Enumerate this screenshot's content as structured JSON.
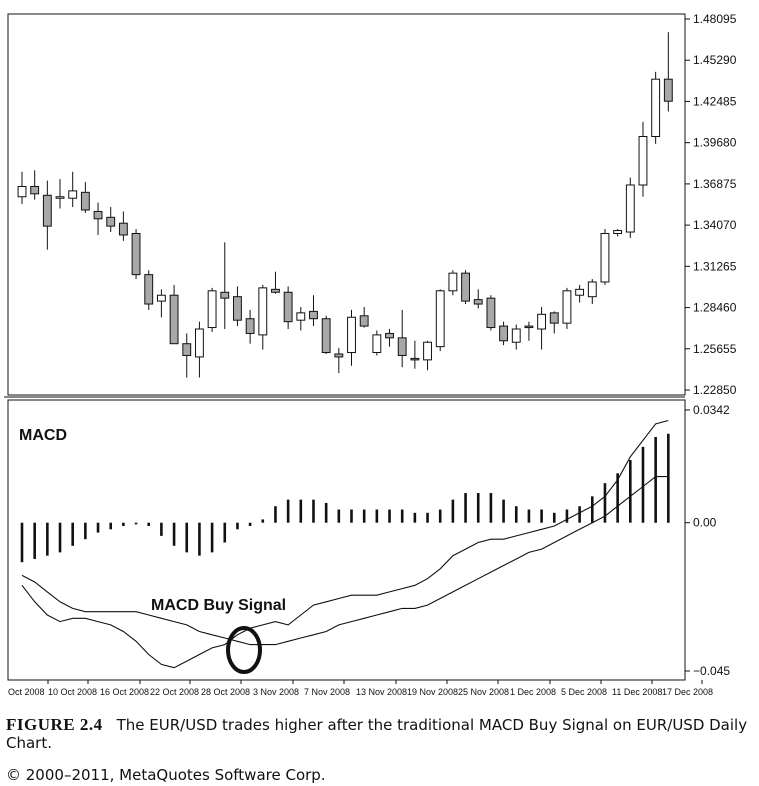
{
  "chart_data": [
    {
      "type": "candlestick",
      "name": "EUR/USD Daily",
      "price_axis_ticks": [
        "1.48095",
        "1.45290",
        "1.42485",
        "1.39680",
        "1.36875",
        "1.34070",
        "1.31265",
        "1.28460",
        "1.25655",
        "1.22850"
      ],
      "ylim": [
        1.2285,
        1.48095
      ],
      "grid": false,
      "candles": [
        {
          "o": 1.36,
          "h": 1.377,
          "l": 1.355,
          "c": 1.367
        },
        {
          "o": 1.367,
          "h": 1.378,
          "l": 1.358,
          "c": 1.362
        },
        {
          "o": 1.361,
          "h": 1.371,
          "l": 1.324,
          "c": 1.34
        },
        {
          "o": 1.36,
          "h": 1.372,
          "l": 1.352,
          "c": 1.36
        },
        {
          "o": 1.359,
          "h": 1.377,
          "l": 1.353,
          "c": 1.364
        },
        {
          "o": 1.363,
          "h": 1.37,
          "l": 1.349,
          "c": 1.351
        },
        {
          "o": 1.35,
          "h": 1.356,
          "l": 1.334,
          "c": 1.345
        },
        {
          "o": 1.346,
          "h": 1.353,
          "l": 1.336,
          "c": 1.34
        },
        {
          "o": 1.342,
          "h": 1.35,
          "l": 1.33,
          "c": 1.334
        },
        {
          "o": 1.335,
          "h": 1.338,
          "l": 1.304,
          "c": 1.307
        },
        {
          "o": 1.307,
          "h": 1.31,
          "l": 1.283,
          "c": 1.287
        },
        {
          "o": 1.289,
          "h": 1.297,
          "l": 1.278,
          "c": 1.293
        },
        {
          "o": 1.293,
          "h": 1.3,
          "l": 1.26,
          "c": 1.26
        },
        {
          "o": 1.26,
          "h": 1.267,
          "l": 1.237,
          "c": 1.252
        },
        {
          "o": 1.251,
          "h": 1.275,
          "l": 1.237,
          "c": 1.27
        },
        {
          "o": 1.271,
          "h": 1.298,
          "l": 1.268,
          "c": 1.296
        },
        {
          "o": 1.295,
          "h": 1.329,
          "l": 1.27,
          "c": 1.291
        },
        {
          "o": 1.292,
          "h": 1.299,
          "l": 1.272,
          "c": 1.276
        },
        {
          "o": 1.277,
          "h": 1.283,
          "l": 1.26,
          "c": 1.267
        },
        {
          "o": 1.266,
          "h": 1.3,
          "l": 1.256,
          "c": 1.298
        },
        {
          "o": 1.297,
          "h": 1.309,
          "l": 1.294,
          "c": 1.295
        },
        {
          "o": 1.295,
          "h": 1.299,
          "l": 1.27,
          "c": 1.275
        },
        {
          "o": 1.276,
          "h": 1.285,
          "l": 1.269,
          "c": 1.281
        },
        {
          "o": 1.282,
          "h": 1.293,
          "l": 1.272,
          "c": 1.277
        },
        {
          "o": 1.277,
          "h": 1.279,
          "l": 1.253,
          "c": 1.254
        },
        {
          "o": 1.253,
          "h": 1.257,
          "l": 1.24,
          "c": 1.251
        },
        {
          "o": 1.254,
          "h": 1.283,
          "l": 1.245,
          "c": 1.278
        },
        {
          "o": 1.279,
          "h": 1.285,
          "l": 1.271,
          "c": 1.272
        },
        {
          "o": 1.254,
          "h": 1.269,
          "l": 1.252,
          "c": 1.266
        },
        {
          "o": 1.267,
          "h": 1.27,
          "l": 1.258,
          "c": 1.264
        },
        {
          "o": 1.264,
          "h": 1.283,
          "l": 1.244,
          "c": 1.252
        },
        {
          "o": 1.25,
          "h": 1.262,
          "l": 1.243,
          "c": 1.249
        },
        {
          "o": 1.249,
          "h": 1.262,
          "l": 1.242,
          "c": 1.261
        },
        {
          "o": 1.258,
          "h": 1.297,
          "l": 1.255,
          "c": 1.296
        },
        {
          "o": 1.296,
          "h": 1.31,
          "l": 1.293,
          "c": 1.308
        },
        {
          "o": 1.308,
          "h": 1.31,
          "l": 1.287,
          "c": 1.289
        },
        {
          "o": 1.29,
          "h": 1.297,
          "l": 1.284,
          "c": 1.287
        },
        {
          "o": 1.291,
          "h": 1.293,
          "l": 1.269,
          "c": 1.271
        },
        {
          "o": 1.272,
          "h": 1.275,
          "l": 1.259,
          "c": 1.262
        },
        {
          "o": 1.261,
          "h": 1.273,
          "l": 1.256,
          "c": 1.27
        },
        {
          "o": 1.272,
          "h": 1.275,
          "l": 1.262,
          "c": 1.271
        },
        {
          "o": 1.27,
          "h": 1.285,
          "l": 1.256,
          "c": 1.28
        },
        {
          "o": 1.281,
          "h": 1.282,
          "l": 1.267,
          "c": 1.274
        },
        {
          "o": 1.274,
          "h": 1.298,
          "l": 1.27,
          "c": 1.296
        },
        {
          "o": 1.293,
          "h": 1.3,
          "l": 1.288,
          "c": 1.297
        },
        {
          "o": 1.292,
          "h": 1.304,
          "l": 1.287,
          "c": 1.302
        },
        {
          "o": 1.302,
          "h": 1.338,
          "l": 1.3,
          "c": 1.335
        },
        {
          "o": 1.335,
          "h": 1.338,
          "l": 1.333,
          "c": 1.337
        },
        {
          "o": 1.336,
          "h": 1.373,
          "l": 1.332,
          "c": 1.368
        },
        {
          "o": 1.368,
          "h": 1.411,
          "l": 1.36,
          "c": 1.401
        },
        {
          "o": 1.401,
          "h": 1.445,
          "l": 1.396,
          "c": 1.44
        },
        {
          "o": 1.44,
          "h": 1.472,
          "l": 1.418,
          "c": 1.425
        }
      ]
    },
    {
      "type": "macd",
      "title": "MACD",
      "axis_ticks": [
        "0.0342",
        "0.00",
        "−0.045"
      ],
      "ylim": [
        -0.045,
        0.0342
      ],
      "annotation": "MACD Buy Signal",
      "histogram": [
        -0.012,
        -0.011,
        -0.01,
        -0.009,
        -0.007,
        -0.005,
        -0.003,
        -0.002,
        -0.001,
        -0.0005,
        -0.001,
        -0.004,
        -0.007,
        -0.009,
        -0.01,
        -0.009,
        -0.006,
        -0.002,
        -0.001,
        0.001,
        0.005,
        0.007,
        0.007,
        0.007,
        0.006,
        0.004,
        0.004,
        0.004,
        0.004,
        0.004,
        0.004,
        0.003,
        0.003,
        0.004,
        0.007,
        0.009,
        0.009,
        0.009,
        0.007,
        0.005,
        0.004,
        0.004,
        0.003,
        0.004,
        0.005,
        0.008,
        0.012,
        0.015,
        0.019,
        0.023,
        0.026,
        0.027
      ],
      "macd_line": [
        -0.016,
        -0.018,
        -0.021,
        -0.024,
        -0.026,
        -0.027,
        -0.027,
        -0.027,
        -0.027,
        -0.027,
        -0.028,
        -0.029,
        -0.03,
        -0.031,
        -0.033,
        -0.034,
        -0.035,
        -0.036,
        -0.037,
        -0.037,
        -0.037,
        -0.036,
        -0.035,
        -0.034,
        -0.033,
        -0.031,
        -0.03,
        -0.029,
        -0.028,
        -0.027,
        -0.026,
        -0.026,
        -0.025,
        -0.023,
        -0.021,
        -0.019,
        -0.017,
        -0.015,
        -0.013,
        -0.011,
        -0.009,
        -0.008,
        -0.006,
        -0.004,
        -0.002,
        0.0,
        0.002,
        0.005,
        0.008,
        0.011,
        0.014,
        0.014
      ],
      "signal_line": [
        -0.019,
        -0.024,
        -0.028,
        -0.03,
        -0.029,
        -0.029,
        -0.03,
        -0.031,
        -0.033,
        -0.036,
        -0.04,
        -0.043,
        -0.044,
        -0.042,
        -0.04,
        -0.038,
        -0.037,
        -0.034,
        -0.032,
        -0.031,
        -0.03,
        -0.031,
        -0.028,
        -0.025,
        -0.024,
        -0.023,
        -0.022,
        -0.022,
        -0.022,
        -0.021,
        -0.02,
        -0.019,
        -0.017,
        -0.014,
        -0.01,
        -0.008,
        -0.006,
        -0.005,
        -0.005,
        -0.004,
        -0.003,
        -0.002,
        -0.001,
        0.001,
        0.003,
        0.005,
        0.008,
        0.013,
        0.02,
        0.025,
        0.03,
        0.031
      ]
    }
  ],
  "date_labels": [
    "Oct 2008",
    "10 Oct 2008",
    "16 Oct 2008",
    "22 Oct 2008",
    "28 Oct 2008",
    "3 Nov 2008",
    "7 Nov 2008",
    "13 Nov 2008",
    "19 Nov 2008",
    "25 Nov 2008",
    "1 Dec 2008",
    "5 Dec 2008",
    "11 Dec 2008",
    "17 Dec 2008"
  ],
  "colors": {
    "bear_fill": "#a8a8a8",
    "bull_fill": "#ffffff",
    "ink": "#111111"
  },
  "caption": {
    "figure_label": "FIGURE 2.4",
    "text": "The EUR/USD trades higher after the traditional MACD Buy Signal on EUR/USD Daily Chart.",
    "copyright": "© 2000–2011, MetaQuotes Software Corp."
  }
}
